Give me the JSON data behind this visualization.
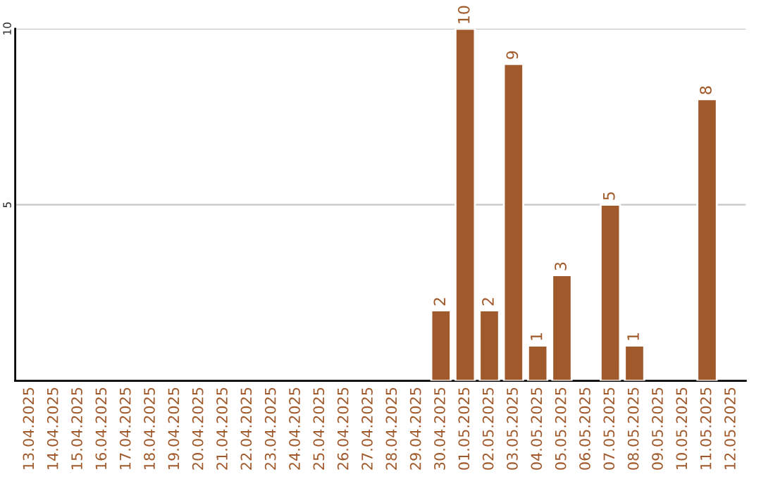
{
  "chart_data": {
    "type": "bar",
    "categories": [
      "13.04.2025",
      "14.04.2025",
      "15.04.2025",
      "16.04.2025",
      "17.04.2025",
      "18.04.2025",
      "19.04.2025",
      "20.04.2025",
      "21.04.2025",
      "22.04.2025",
      "23.04.2025",
      "24.04.2025",
      "25.04.2025",
      "26.04.2025",
      "27.04.2025",
      "28.04.2025",
      "29.04.2025",
      "30.04.2025",
      "01.05.2025",
      "02.05.2025",
      "03.05.2025",
      "04.05.2025",
      "05.05.2025",
      "06.05.2025",
      "07.05.2025",
      "08.05.2025",
      "09.05.2025",
      "10.05.2025",
      "11.05.2025",
      "12.05.2025"
    ],
    "values": [
      null,
      null,
      null,
      null,
      null,
      null,
      null,
      null,
      null,
      null,
      null,
      null,
      null,
      null,
      null,
      null,
      null,
      2,
      10,
      2,
      9,
      1,
      3,
      null,
      5,
      1,
      null,
      null,
      8,
      null
    ],
    "color": "#a0592b",
    "ylim": [
      0,
      10
    ],
    "yticks": [
      5,
      10
    ],
    "grid": "y",
    "data_labels": true
  }
}
